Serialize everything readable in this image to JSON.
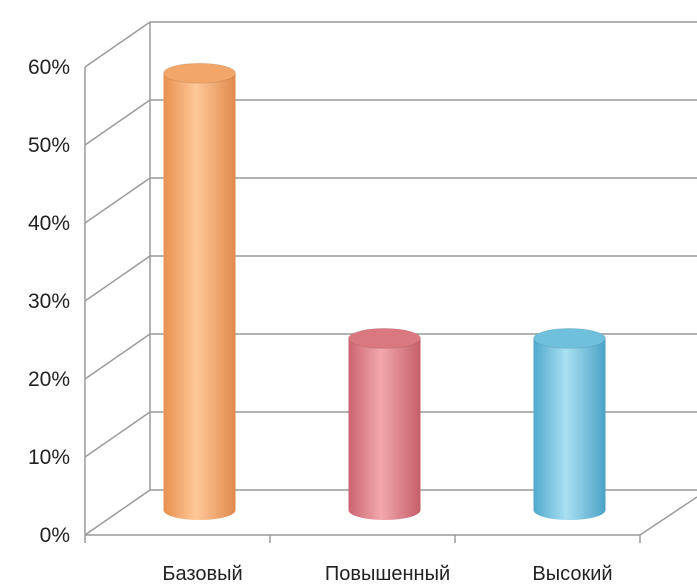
{
  "chart_data": {
    "type": "bar",
    "style": "3d-cylinder",
    "categories": [
      "Базовый",
      "Повышенный",
      "Высокий"
    ],
    "values": [
      56,
      22,
      22
    ],
    "unit": "%",
    "ylim": [
      0,
      60
    ],
    "yticks": [
      "0%",
      "10%",
      "20%",
      "30%",
      "40%",
      "50%",
      "60%"
    ],
    "grid": true,
    "legend": "none",
    "bar_colors": [
      "#f2a66a",
      "#d9787f",
      "#6fc0dd"
    ]
  }
}
